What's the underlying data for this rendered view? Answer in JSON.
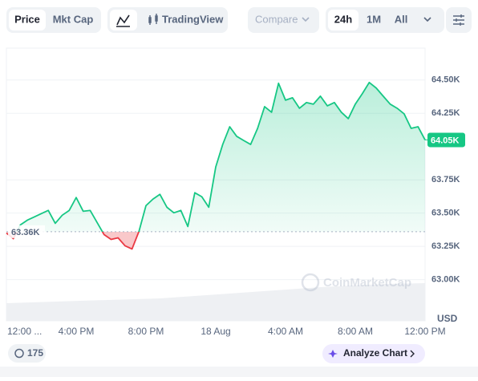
{
  "toolbar": {
    "price": "Price",
    "mkt_cap": "Mkt Cap",
    "tradingview": "TradingView",
    "compare": "Compare",
    "range_24h": "24h",
    "range_1m": "1M",
    "range_all": "All"
  },
  "chart_data": {
    "type": "line",
    "x": [
      0,
      0.4,
      0.8,
      1.2,
      1.6,
      2,
      2.4,
      2.8,
      3.2,
      3.6,
      4,
      4.4,
      4.8,
      5.2,
      5.6,
      6,
      6.4,
      6.8,
      7.2,
      7.6,
      8,
      8.4,
      8.8,
      9.2,
      9.6,
      10,
      10.4,
      10.8,
      11.2,
      11.6,
      12,
      12.4,
      12.8,
      13.2,
      13.6,
      14,
      14.4,
      14.8,
      15.2,
      15.6,
      16,
      16.4,
      16.8,
      17.2,
      17.6,
      18,
      18.4,
      18.8,
      19.2,
      19.6,
      20,
      20.4,
      20.8,
      21.2,
      21.6,
      22,
      22.4,
      22.8,
      23.2,
      23.6,
      24
    ],
    "values": [
      63350,
      63308,
      63411,
      63447,
      63471,
      63496,
      63520,
      63423,
      63484,
      63520,
      63617,
      63514,
      63520,
      63429,
      63338,
      63302,
      63314,
      63254,
      63230,
      63363,
      63556,
      63605,
      63641,
      63544,
      63502,
      63520,
      63399,
      63653,
      63623,
      63544,
      63847,
      64016,
      64149,
      64077,
      64046,
      64016,
      64137,
      64300,
      64258,
      64476,
      64349,
      64367,
      64288,
      64331,
      64319,
      64379,
      64306,
      64331,
      64258,
      64210,
      64319,
      64397,
      64482,
      64440,
      64379,
      64319,
      64288,
      64246,
      64137,
      64149,
      64050
    ],
    "color_up": "#16c784",
    "color_down": "#ea3943",
    "baseline": {
      "value": 63360,
      "label": "63.36K"
    },
    "last_price": {
      "value": 64050,
      "label": "64.05K"
    },
    "ylim": [
      62690,
      64740
    ],
    "yticks": [
      {
        "value": 64500,
        "label": "64.50K"
      },
      {
        "value": 64250,
        "label": "64.25K"
      },
      {
        "value": 63750,
        "label": "63.75K"
      },
      {
        "value": 63500,
        "label": "63.50K"
      },
      {
        "value": 63250,
        "label": "63.25K"
      },
      {
        "value": 63000,
        "label": "63.00K"
      }
    ],
    "xlim": [
      0,
      24
    ],
    "xticks": [
      {
        "value": 0,
        "label": "12:00 ..."
      },
      {
        "value": 4,
        "label": "4:00 PM"
      },
      {
        "value": 8,
        "label": "8:00 PM"
      },
      {
        "value": 12,
        "label": "18 Aug"
      },
      {
        "value": 16,
        "label": "4:00 AM"
      },
      {
        "value": 20,
        "label": "8:00 AM"
      },
      {
        "value": 24,
        "label": "12:00 PM"
      }
    ],
    "y_unit": "USD",
    "watermark": "CoinMarketCap",
    "grid": true
  },
  "footer": {
    "badge": "175",
    "analyze": "Analyze Chart"
  }
}
